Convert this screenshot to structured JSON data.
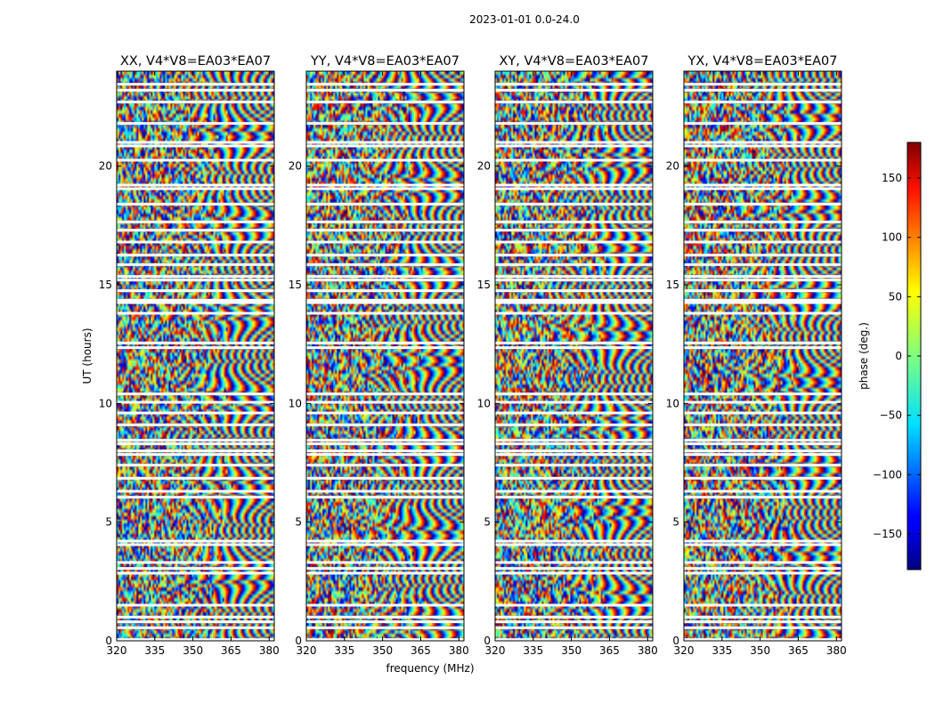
{
  "chart_data": {
    "type": "heatmap",
    "suptitle": "2023-01-01 0.0-24.0",
    "xlabel": "frequency (MHz)",
    "ylabel": "UT (hours)",
    "xlim": [
      320,
      382
    ],
    "ylim": [
      0,
      24
    ],
    "xticks": [
      320,
      335,
      350,
      365,
      380
    ],
    "yticks": [
      0,
      5,
      10,
      15,
      20
    ],
    "panels": [
      {
        "title": "XX, V4*V8=EA03*EA07",
        "pol": "XX"
      },
      {
        "title": "YY, V4*V8=EA03*EA07",
        "pol": "YY"
      },
      {
        "title": "XY, V4*V8=EA03*EA07",
        "pol": "XY"
      },
      {
        "title": "YX, V4*V8=EA03*EA07",
        "pol": "YX"
      }
    ],
    "colorbar": {
      "label": "phase (deg.)",
      "range": [
        -180,
        180
      ],
      "ticks": [
        -150,
        -100,
        -50,
        0,
        50,
        100,
        150
      ],
      "tick_labels": [
        "−150",
        "−100",
        "−50",
        "0",
        "50",
        "100",
        "150"
      ],
      "colormap": "jet"
    },
    "flagged_hours": [
      0.05,
      0.55,
      0.8,
      1.0,
      1.5,
      2.85,
      3.05,
      3.3,
      4.05,
      4.2,
      6.05,
      6.3,
      6.85,
      7.4,
      7.85,
      8.0,
      8.3,
      8.45,
      9.1,
      9.6,
      10.05,
      10.4,
      12.35,
      12.55,
      13.8,
      14.25,
      14.35,
      14.75,
      15.2,
      15.35,
      15.85,
      16.25,
      16.8,
      17.3,
      17.65,
      18.4,
      19.05,
      19.2,
      20.25,
      20.85,
      21.0,
      21.8,
      22.7,
      23.2,
      23.45
    ]
  }
}
